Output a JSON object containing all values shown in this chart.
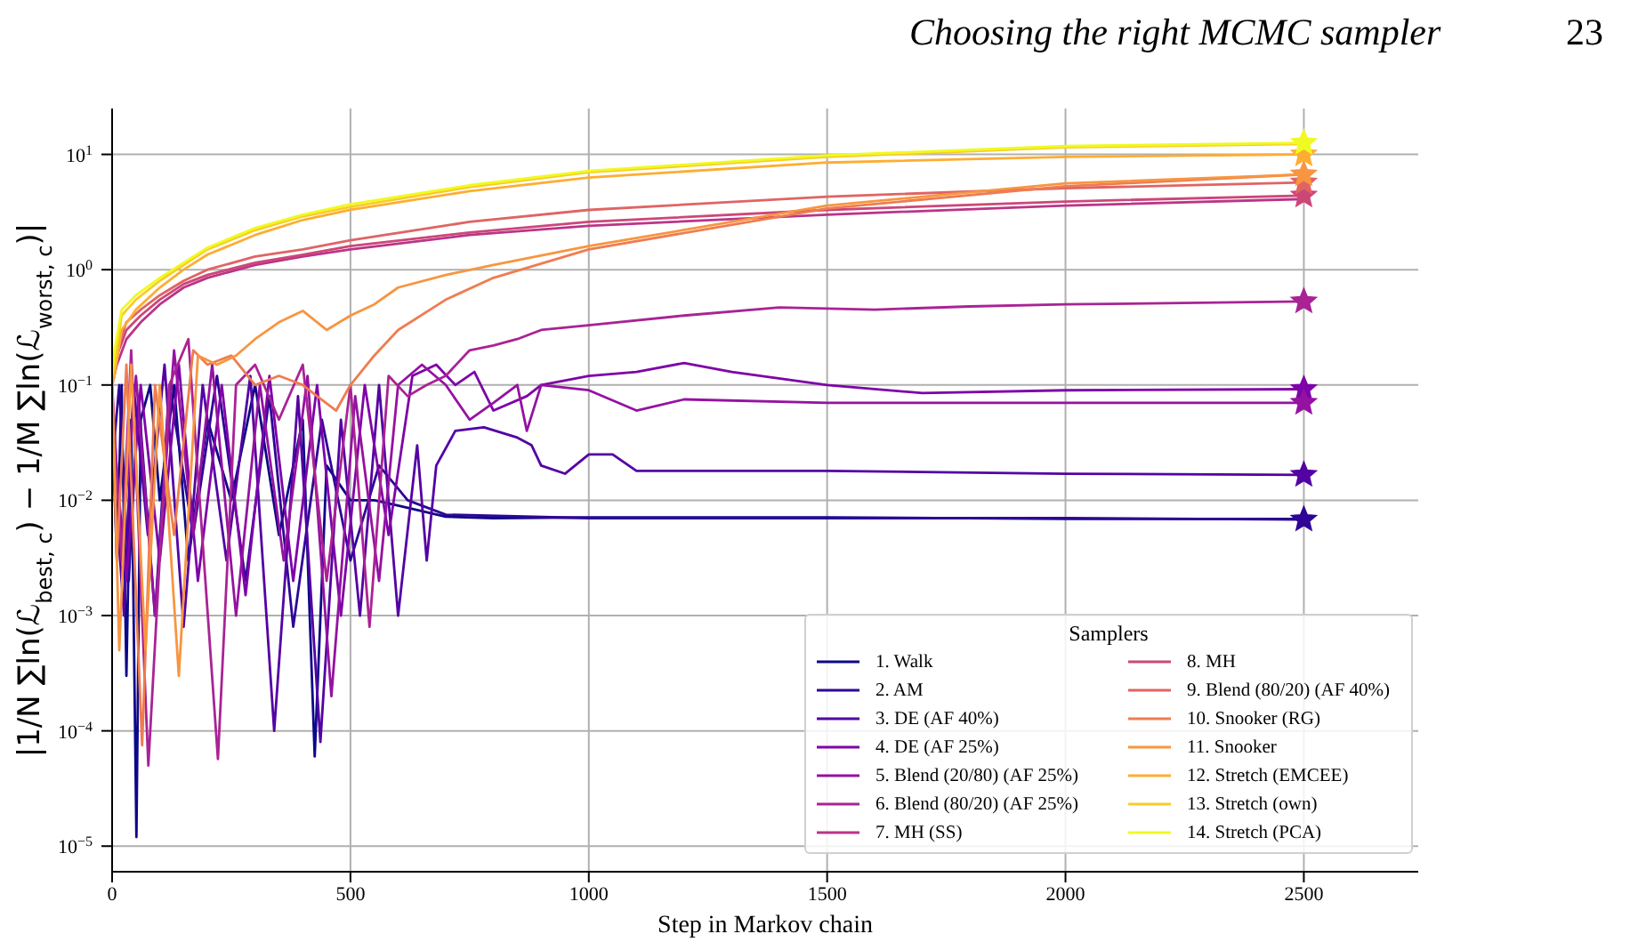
{
  "chart_data": {
    "type": "line",
    "xlabel": "Step in Markov chain",
    "ylabel": "|1/N ∑ln(ℒ$_{best, c}$) − 1/M ∑ln(ℒ$_{worst, c}$)|",
    "legend_title": "Samplers",
    "annotations": [
      "Choosing the right MCMC sampler",
      "23"
    ],
    "xlim": [
      0,
      2740
    ],
    "xticks": [
      0,
      500,
      1000,
      1500,
      2000,
      2500
    ],
    "ylim": [
      6e-06,
      25
    ],
    "yticks": [
      {
        "value": 1e-05,
        "label": "10$^{−5}$"
      },
      {
        "value": 0.0001,
        "label": "10$^{−4}$"
      },
      {
        "value": 0.001,
        "label": "10$^{−3}$"
      },
      {
        "value": 0.01,
        "label": "10$^{−2}$"
      },
      {
        "value": 0.1,
        "label": "10$^{−1}$"
      },
      {
        "value": 1,
        "label": "10$^{0}$"
      },
      {
        "value": 10,
        "label": "10$^{1}$"
      }
    ],
    "log": "y",
    "grid": true,
    "legend": "bottom right",
    "line_style": "solid",
    "series": [
      {
        "name": "1. Walk",
        "color": "#0d0887",
        "x": [
          0,
          10,
          20,
          30,
          40,
          51,
          60,
          80,
          100,
          130,
          160,
          200,
          250,
          300,
          350,
          400,
          425,
          450,
          500,
          550,
          600,
          700,
          800,
          1000,
          1500,
          2000,
          2500
        ],
        "values": [
          0.05,
          0.003,
          0.1,
          0.0003,
          0.05,
          1.2e-05,
          0.05,
          0.1,
          0.01,
          0.1,
          0.003,
          0.05,
          0.01,
          0.1,
          0.005,
          0.05,
          6e-05,
          0.02,
          0.01,
          0.01,
          0.009,
          0.0072,
          0.007,
          0.0071,
          0.0071,
          0.0069,
          0.0069
        ]
      },
      {
        "name": "2. AM",
        "color": "#2f0596",
        "x": [
          0,
          15,
          35,
          55,
          90,
          120,
          170,
          220,
          280,
          330,
          380,
          440,
          500,
          560,
          620,
          700,
          1000,
          1500,
          2000,
          2500
        ],
        "values": [
          0.02,
          0.1,
          0.002,
          0.08,
          0.001,
          0.1,
          0.005,
          0.12,
          0.002,
          0.08,
          0.0008,
          0.05,
          0.003,
          0.02,
          0.01,
          0.0075,
          0.007,
          0.007,
          0.007,
          0.0068
        ]
      },
      {
        "name": "3. DE (AF 40%)",
        "color": "#5302a3",
        "x": [
          0,
          25,
          45,
          75,
          110,
          150,
          190,
          240,
          290,
          340,
          390,
          437,
          480,
          520,
          560,
          600,
          640,
          660,
          680,
          720,
          780,
          850,
          880,
          900,
          950,
          1000,
          1050,
          1100,
          1500,
          2000,
          2500
        ],
        "values": [
          0.03,
          0.001,
          0.1,
          0.005,
          0.15,
          0.0008,
          0.1,
          0.003,
          0.12,
          0.0001,
          0.08,
          8e-05,
          0.05,
          0.001,
          0.1,
          0.001,
          0.03,
          0.003,
          0.02,
          0.04,
          0.043,
          0.035,
          0.03,
          0.02,
          0.017,
          0.025,
          0.025,
          0.018,
          0.018,
          0.017,
          0.0166
        ]
      },
      {
        "name": "4. DE (AF 25%)",
        "color": "#7e03a8",
        "x": [
          0,
          30,
          60,
          100,
          140,
          180,
          230,
          280,
          330,
          380,
          430,
          480,
          530,
          580,
          630,
          680,
          720,
          760,
          800,
          870,
          900,
          1000,
          1100,
          1200,
          1300,
          1500,
          1700,
          2000,
          2500
        ],
        "values": [
          0.05,
          0.002,
          0.1,
          0.003,
          0.15,
          0.002,
          0.1,
          0.0015,
          0.12,
          0.002,
          0.1,
          0.001,
          0.1,
          0.005,
          0.12,
          0.15,
          0.1,
          0.13,
          0.06,
          0.08,
          0.1,
          0.12,
          0.13,
          0.155,
          0.13,
          0.1,
          0.085,
          0.09,
          0.092
        ]
      },
      {
        "name": "5. Blend (20/80) (AF 25%)",
        "color": "#9512a1",
        "x": [
          0,
          20,
          50,
          90,
          130,
          170,
          210,
          260,
          310,
          360,
          410,
          460,
          510,
          560,
          600,
          650,
          700,
          750,
          800,
          850,
          870,
          900,
          1000,
          1100,
          1200,
          1500,
          2000,
          2500
        ],
        "values": [
          0.08,
          0.004,
          0.12,
          0.001,
          0.2,
          0.005,
          0.15,
          0.001,
          0.1,
          0.003,
          0.12,
          0.0002,
          0.08,
          0.002,
          0.1,
          0.15,
          0.1,
          0.05,
          0.07,
          0.1,
          0.04,
          0.1,
          0.09,
          0.06,
          0.075,
          0.07,
          0.07,
          0.07
        ]
      },
      {
        "name": "6. Blend (80/20) (AF 25%)",
        "color": "#a92395",
        "x": [
          0,
          20,
          40,
          76,
          120,
          160,
          222,
          260,
          300,
          350,
          400,
          450,
          500,
          540,
          580,
          620,
          660,
          700,
          750,
          800,
          850,
          900,
          1000,
          1200,
          1400,
          1600,
          1800,
          2000,
          2500
        ],
        "values": [
          0.1,
          0.003,
          0.2,
          5e-05,
          0.1,
          0.25,
          5.7e-05,
          0.1,
          0.15,
          0.05,
          0.15,
          0.002,
          0.1,
          0.0008,
          0.12,
          0.08,
          0.1,
          0.12,
          0.2,
          0.22,
          0.25,
          0.3,
          0.33,
          0.4,
          0.47,
          0.45,
          0.48,
          0.5,
          0.53
        ]
      },
      {
        "name": "7. MH (SS)",
        "color": "#bb3488",
        "x": [
          0,
          10,
          30,
          60,
          100,
          150,
          200,
          300,
          400,
          500,
          750,
          1000,
          1500,
          2000,
          2500
        ],
        "values": [
          0.1,
          0.15,
          0.25,
          0.35,
          0.5,
          0.7,
          0.85,
          1.1,
          1.3,
          1.5,
          2,
          2.4,
          3,
          3.6,
          4.1
        ]
      },
      {
        "name": "8. MH",
        "color": "#cc4778",
        "x": [
          0,
          10,
          30,
          60,
          100,
          150,
          200,
          300,
          400,
          500,
          750,
          1000,
          1500,
          2000,
          2500
        ],
        "values": [
          0.12,
          0.18,
          0.3,
          0.4,
          0.55,
          0.75,
          0.9,
          1.15,
          1.35,
          1.6,
          2.1,
          2.6,
          3.3,
          3.9,
          4.4
        ]
      },
      {
        "name": "9. Blend (80/20) (AF 40%)",
        "color": "#e06464",
        "x": [
          0,
          10,
          30,
          60,
          100,
          150,
          200,
          300,
          400,
          500,
          750,
          1000,
          1500,
          2000,
          2500
        ],
        "values": [
          0.15,
          0.2,
          0.35,
          0.45,
          0.6,
          0.8,
          1,
          1.3,
          1.5,
          1.8,
          2.6,
          3.3,
          4.3,
          5.1,
          5.7
        ]
      },
      {
        "name": "10. Snooker (RG)",
        "color": "#ef7c50",
        "x": [
          0,
          10,
          30,
          63,
          90,
          130,
          170,
          200,
          250,
          300,
          350,
          400,
          430,
          470,
          500,
          550,
          600,
          700,
          800,
          1000,
          1500,
          2000,
          2500
        ],
        "values": [
          0.1,
          0.003,
          0.15,
          7.5e-05,
          0.1,
          0.005,
          0.2,
          0.15,
          0.18,
          0.1,
          0.12,
          0.1,
          0.08,
          0.06,
          0.1,
          0.18,
          0.3,
          0.55,
          0.85,
          1.5,
          3.4,
          5.3,
          6.7
        ]
      },
      {
        "name": "11. Snooker",
        "color": "#f89540",
        "x": [
          0,
          15,
          40,
          70,
          100,
          140,
          180,
          220,
          260,
          300,
          350,
          400,
          450,
          500,
          550,
          600,
          700,
          800,
          1000,
          1500,
          2000,
          2500
        ],
        "values": [
          0.12,
          0.0005,
          0.15,
          0.0005,
          0.1,
          0.0003,
          0.18,
          0.15,
          0.18,
          0.25,
          0.35,
          0.44,
          0.3,
          0.4,
          0.5,
          0.7,
          0.9,
          1.1,
          1.6,
          3.6,
          5.6,
          6.7
        ]
      },
      {
        "name": "12. Stretch (EMCEE)",
        "color": "#fdad32",
        "x": [
          0,
          5,
          20,
          50,
          100,
          150,
          200,
          300,
          400,
          500,
          750,
          1000,
          1500,
          2000,
          2500
        ],
        "values": [
          0.1,
          0.12,
          0.3,
          0.45,
          0.7,
          1,
          1.35,
          2,
          2.7,
          3.3,
          4.8,
          6.3,
          8.5,
          9.5,
          10
        ]
      },
      {
        "name": "13. Stretch (own)",
        "color": "#f8cd25",
        "x": [
          0,
          5,
          20,
          50,
          100,
          150,
          200,
          300,
          400,
          500,
          750,
          1000,
          1500,
          2000,
          2500
        ],
        "values": [
          0.12,
          0.15,
          0.4,
          0.55,
          0.8,
          1.1,
          1.5,
          2.2,
          2.9,
          3.5,
          5.2,
          7,
          9.5,
          11.5,
          12.3
        ]
      },
      {
        "name": "14. Stretch (PCA)",
        "color": "#f0f921",
        "x": [
          0,
          5,
          20,
          50,
          100,
          150,
          200,
          300,
          400,
          500,
          750,
          1000,
          1500,
          2000,
          2500
        ],
        "values": [
          0.12,
          0.2,
          0.45,
          0.6,
          0.85,
          1.15,
          1.55,
          2.3,
          3,
          3.7,
          5.4,
          7.2,
          9.8,
          11.8,
          12.6
        ]
      },
      {
        "type": "scatter",
        "marker": "star",
        "x": [
          2500,
          2500,
          2500,
          2500,
          2500,
          2500,
          2500,
          2500,
          2500,
          2500
        ],
        "values": [
          0.0068,
          0.0166,
          0.092,
          0.07,
          0.53,
          4.4,
          5.7,
          6.7,
          10,
          12.6
        ],
        "colors": [
          "#2f0596",
          "#5302a3",
          "#7e03a8",
          "#9512a1",
          "#a92395",
          "#cc4778",
          "#e06464",
          "#f89540",
          "#fdad32",
          "#f0f921"
        ]
      }
    ]
  }
}
